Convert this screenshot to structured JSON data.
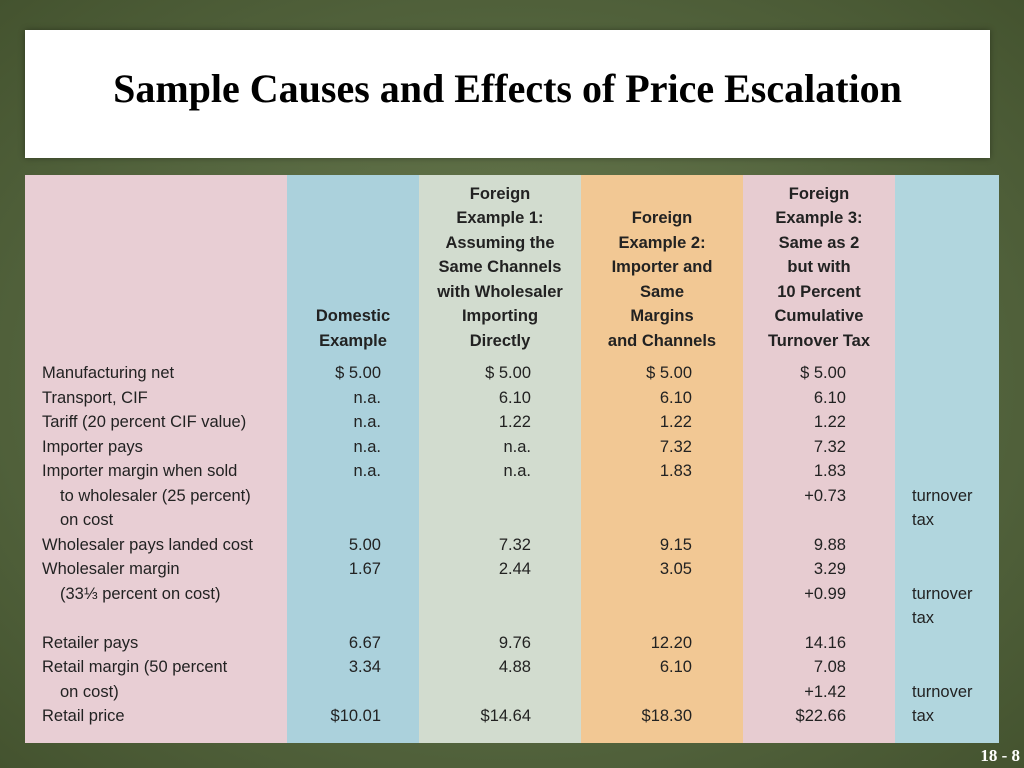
{
  "title": "Sample Causes and Effects of Price Escalation",
  "headers": {
    "domestic": [
      "Domestic",
      "Example"
    ],
    "foreign1": [
      "Foreign",
      "Example 1:",
      "Assuming the",
      "Same Channels",
      "with Wholesaler",
      "Importing",
      "Directly"
    ],
    "foreign2": [
      "Foreign",
      "Example 2:",
      "Importer and",
      "Same",
      "Margins",
      "and Channels"
    ],
    "foreign3": [
      "Foreign",
      "Example 3:",
      "Same as 2",
      "but with",
      "10 Percent",
      "Cumulative",
      "Turnover Tax"
    ]
  },
  "rows": [
    {
      "label": "Manufacturing net",
      "domestic": "$ 5.00",
      "foreign1": "$ 5.00",
      "foreign2": "$ 5.00",
      "foreign3": "$ 5.00",
      "tax": ""
    },
    {
      "label": "Transport, CIF",
      "domestic": "n.a.",
      "foreign1": "6.10",
      "foreign2": "6.10",
      "foreign3": "6.10",
      "tax": ""
    },
    {
      "label": "Tariff (20 percent CIF value)",
      "domestic": "n.a.",
      "foreign1": "1.22",
      "foreign2": "1.22",
      "foreign3": "1.22",
      "tax": ""
    },
    {
      "label": "Importer pays",
      "domestic": "n.a.",
      "foreign1": "n.a.",
      "foreign2": "7.32",
      "foreign3": "7.32",
      "tax": ""
    },
    {
      "label": "Importer margin when sold",
      "domestic": "n.a.",
      "foreign1": "n.a.",
      "foreign2": "1.83",
      "foreign3": "1.83",
      "tax": ""
    },
    {
      "label": "to wholesaler (25 percent)",
      "indent": true,
      "domestic": "",
      "foreign1": "",
      "foreign2": "",
      "foreign3": "+0.73",
      "tax": "turnover"
    },
    {
      "label": "on cost",
      "indent": true,
      "domestic": "",
      "foreign1": "",
      "foreign2": "",
      "foreign3": "",
      "tax": "tax"
    },
    {
      "label": "Wholesaler pays landed cost",
      "domestic": "5.00",
      "foreign1": "7.32",
      "foreign2": "9.15",
      "foreign3": "9.88",
      "tax": ""
    },
    {
      "label": "Wholesaler margin",
      "domestic": "1.67",
      "foreign1": "2.44",
      "foreign2": "3.05",
      "foreign3": "3.29",
      "tax": ""
    },
    {
      "label": "(33⅓ percent on cost)",
      "indent": true,
      "domestic": "",
      "foreign1": "",
      "foreign2": "",
      "foreign3": "+0.99",
      "tax": "turnover"
    },
    {
      "label": "",
      "domestic": "",
      "foreign1": "",
      "foreign2": "",
      "foreign3": "",
      "tax": "tax"
    },
    {
      "label": "Retailer pays",
      "domestic": "6.67",
      "foreign1": "9.76",
      "foreign2": "12.20",
      "foreign3": "14.16",
      "tax": ""
    },
    {
      "label": "Retail margin (50 percent",
      "domestic": "3.34",
      "foreign1": "4.88",
      "foreign2": "6.10",
      "foreign3": "7.08",
      "tax": ""
    },
    {
      "label": "on cost)",
      "indent": true,
      "domestic": "",
      "foreign1": "",
      "foreign2": "",
      "foreign3": "+1.42",
      "tax": "turnover"
    },
    {
      "label": "Retail price",
      "domestic": "$10.01",
      "foreign1": "$14.64",
      "foreign2": "$18.30",
      "foreign3": "$22.66",
      "tax": "tax"
    }
  ],
  "slide_number": "18 - 8"
}
